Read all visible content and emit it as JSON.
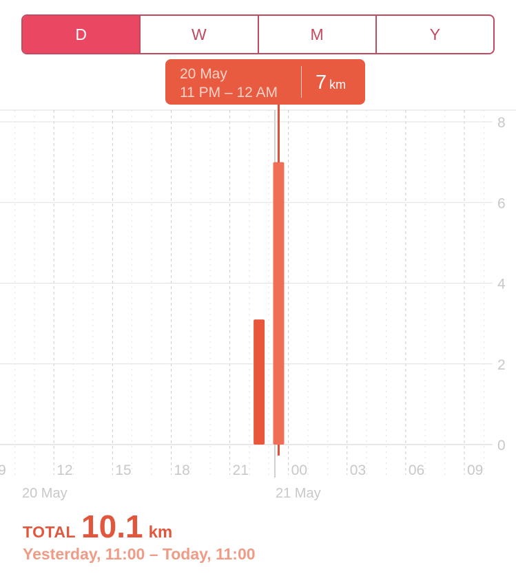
{
  "segments": [
    {
      "label": "D",
      "active": true
    },
    {
      "label": "W",
      "active": false
    },
    {
      "label": "M",
      "active": false
    },
    {
      "label": "Y",
      "active": false
    }
  ],
  "tooltip": {
    "date": "20 May",
    "time": "11 PM – 12 AM",
    "value": "7",
    "unit": "km"
  },
  "chart_data": {
    "type": "bar",
    "unit": "km",
    "x": [
      "22:00",
      "23:00"
    ],
    "values": [
      3.1,
      7.0
    ],
    "highlighted": "23:00",
    "ylim": [
      0,
      8
    ],
    "y_ticks": [
      "0",
      "2",
      "4",
      "6",
      "8"
    ],
    "x_tick_labels": [
      {
        "hour": -24,
        "label": "9"
      },
      {
        "hour": -21,
        "label": "12"
      },
      {
        "hour": -18,
        "label": "15"
      },
      {
        "hour": -15,
        "label": "18"
      },
      {
        "hour": -12,
        "label": "21"
      },
      {
        "hour": -9,
        "label": "00"
      },
      {
        "hour": -6,
        "label": "03"
      },
      {
        "hour": -3,
        "label": "06"
      },
      {
        "hour": 0,
        "label": "09"
      }
    ],
    "day_labels": [
      {
        "text": "20 May"
      },
      {
        "text": "21 May"
      }
    ],
    "grid": true,
    "colors": {
      "bar": "#e8573c",
      "bar_highlight": "#ee6f55",
      "grid": "#d8d8d8",
      "axis_text": "#c8c8c8"
    }
  },
  "summary": {
    "total_label": "TOTAL",
    "total_value": "10.1",
    "total_unit": "km",
    "range": "Yesterday, 11:00 – Today, 11:00"
  }
}
